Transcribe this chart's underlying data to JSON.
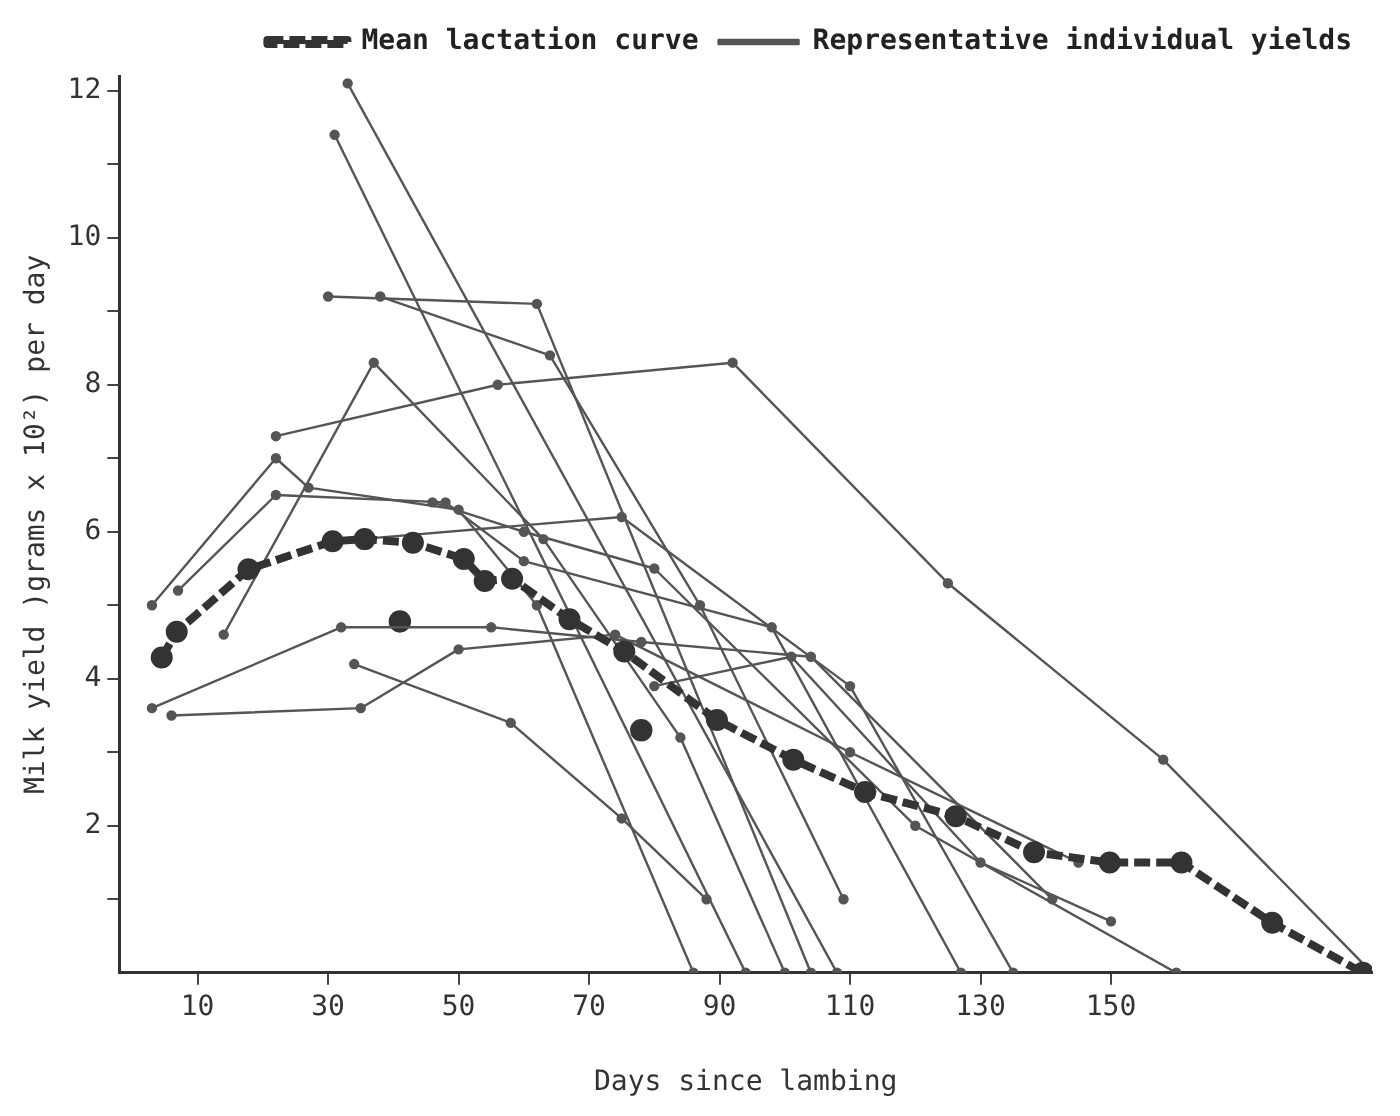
{
  "chart_data": {
    "type": "line",
    "xlabel": "Days since lambing",
    "ylabel": "Milk yield )grams x 10²) per day",
    "xlim": [
      -2,
      190
    ],
    "xticks": [
      10,
      30,
      50,
      70,
      90,
      110,
      130,
      150
    ],
    "ylim": [
      0,
      12.2
    ],
    "yticks": [
      {
        "value": 1,
        "label": null
      },
      2,
      {
        "value": 3,
        "label": null
      },
      4,
      {
        "value": 5,
        "label": null
      },
      6,
      {
        "value": 7,
        "label": null
      },
      8,
      {
        "value": 9,
        "label": null
      },
      10,
      {
        "value": 11,
        "label": null
      },
      12
    ],
    "grid": false,
    "legend": "top right",
    "marker": "circle",
    "line_style": "solid",
    "series": [
      {
        "name": "Mean lactation curve",
        "color": "#333333",
        "line_style": "dashed",
        "x": [
          4.5,
          6.8,
          17.8,
          30.7,
          35.6,
          43,
          50.8,
          54,
          58.2,
          67,
          75.4,
          89.6,
          101.3,
          112.3,
          126.2,
          138.2,
          149.8,
          160.8,
          174.7,
          188.6
        ],
        "values": [
          4.29,
          4.64,
          5.49,
          5.87,
          5.9,
          5.85,
          5.63,
          5.33,
          5.36,
          4.81,
          4.37,
          3.44,
          2.9,
          2.46,
          2.13,
          1.64,
          1.5,
          1.5,
          0.68,
          0
        ]
      },
      {
        "name": "Representative individual yields",
        "color": "#555555",
        "x": [
          22,
          56,
          92,
          125,
          158,
          190
        ],
        "values": [
          7.3,
          8.0,
          8.3,
          5.3,
          2.9,
          0
        ]
      },
      {
        "color": "#555555",
        "x": [
          33,
          108
        ],
        "values": [
          12.1,
          0
        ]
      },
      {
        "color": "#555555",
        "x": [
          31,
          94
        ],
        "values": [
          11.4,
          0
        ]
      },
      {
        "color": "#555555",
        "x": [
          30,
          62,
          104
        ],
        "values": [
          9.2,
          9.1,
          0
        ]
      },
      {
        "color": "#555555",
        "x": [
          38,
          64,
          87,
          109
        ],
        "values": [
          9.2,
          8.4,
          5.0,
          1.0
        ]
      },
      {
        "color": "#555555",
        "x": [
          14,
          37,
          63,
          84,
          100
        ],
        "values": [
          4.6,
          8.3,
          5.9,
          3.2,
          0
        ]
      },
      {
        "color": "#555555",
        "x": [
          3,
          22,
          27,
          50,
          62,
          86
        ],
        "values": [
          5.0,
          7.0,
          6.6,
          6.3,
          5.0,
          0
        ]
      },
      {
        "color": "#555555",
        "x": [
          7,
          22,
          48,
          60,
          98,
          127
        ],
        "values": [
          5.2,
          6.5,
          6.4,
          5.6,
          4.7,
          0
        ]
      },
      {
        "color": "#555555",
        "x": [
          3,
          32,
          55,
          78,
          104,
          141
        ],
        "values": [
          3.6,
          4.7,
          4.7,
          4.5,
          4.3,
          1.0
        ]
      },
      {
        "color": "#555555",
        "x": [
          6,
          35,
          50,
          74,
          110,
          145
        ],
        "values": [
          3.5,
          3.6,
          4.4,
          4.6,
          3.0,
          1.5
        ]
      },
      {
        "color": "#555555",
        "x": [
          34,
          58,
          75,
          88
        ],
        "values": [
          4.2,
          3.4,
          2.1,
          1.0
        ]
      },
      {
        "color": "#555555",
        "x": [
          35,
          75,
          110,
          135
        ],
        "values": [
          5.9,
          6.2,
          3.9,
          0
        ]
      },
      {
        "color": "#555555",
        "x": [
          46,
          60,
          80,
          120,
          160
        ],
        "values": [
          6.4,
          6.0,
          5.5,
          2.0,
          0
        ]
      },
      {
        "color": "#555555",
        "x": [
          80,
          101,
          130,
          150
        ],
        "values": [
          3.9,
          4.3,
          1.5,
          0.7
        ]
      },
      {
        "type": "scatter",
        "color": "#333333",
        "x": [
          41,
          78
        ],
        "values": [
          4.78,
          3.3
        ]
      }
    ]
  }
}
